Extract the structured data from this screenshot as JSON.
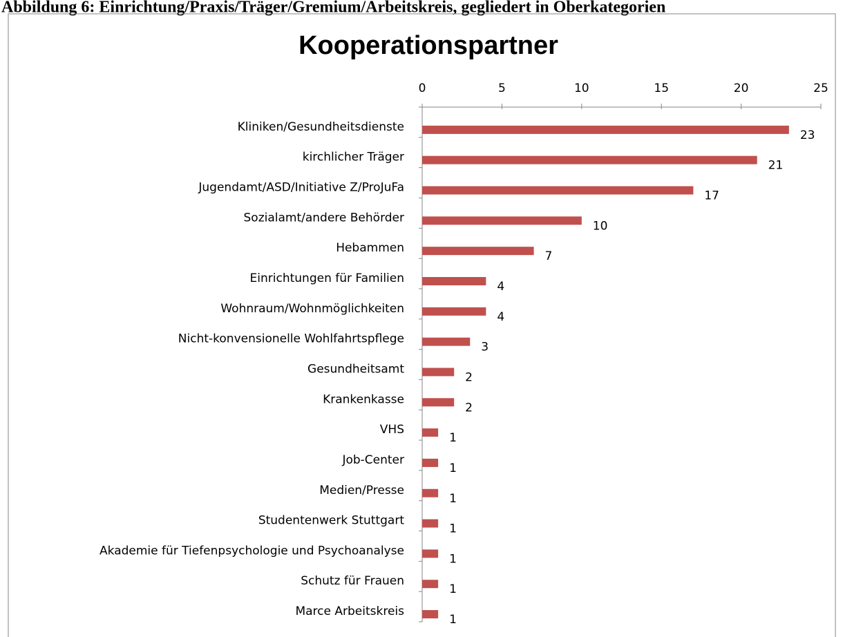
{
  "caption": "Abbildung 6: Einrichtung/Praxis/Träger/Gremium/Arbeitskreis, gegliedert in Oberkategorien",
  "chart_data": {
    "type": "bar",
    "orientation": "horizontal",
    "title": "Kooperationspartner",
    "categories": [
      "Kliniken/Gesundheitsdienste",
      "kirchlicher Träger",
      "Jugendamt/ASD/Initiative Z/ProJuFa",
      "Sozialamt/andere Behörder",
      "Hebammen",
      "Einrichtungen für Familien",
      "Wohnraum/Wohnmöglichkeiten",
      "Nicht-konvensionelle Wohlfahrtspflege",
      "Gesundheitsamt",
      "Krankenkasse",
      "VHS",
      "Job-Center",
      "Medien/Presse",
      "Studentenwerk Stuttgart",
      "Akademie für Tiefenpsychologie und Psychoanalyse",
      "Schutz für Frauen",
      "Marce Arbeitskreis"
    ],
    "values": [
      23,
      21,
      17,
      10,
      7,
      4,
      4,
      3,
      2,
      2,
      1,
      1,
      1,
      1,
      1,
      1,
      1
    ],
    "color": "#c0504d",
    "xlim": [
      0,
      25
    ],
    "xticks": [
      0,
      5,
      10,
      15,
      20,
      25
    ],
    "grid": false
  }
}
